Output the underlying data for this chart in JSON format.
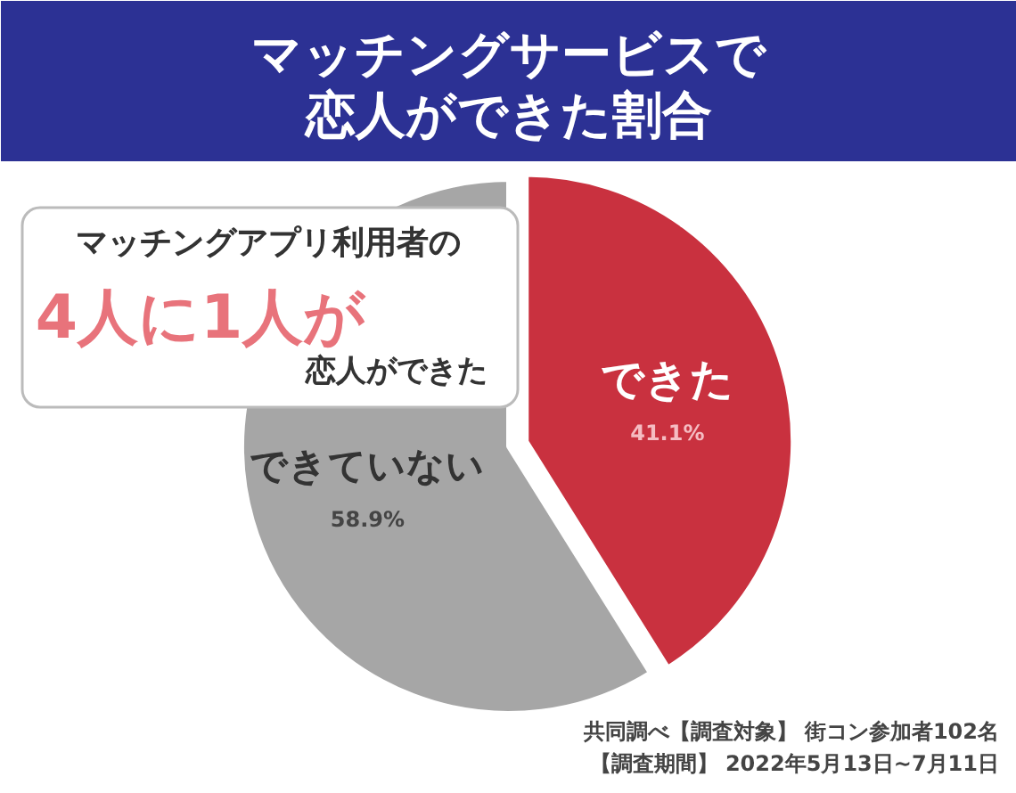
{
  "chart_data": {
    "type": "pie",
    "title": "マッチングサービスで恋人ができた割合",
    "categories": [
      "できた",
      "できていない"
    ],
    "values": [
      41.1,
      58.9
    ],
    "colors": [
      "#c9313f",
      "#a6a6a6"
    ],
    "value_labels": [
      "41.1%",
      "58.9%"
    ],
    "annotations": [
      "マッチングアプリ利用者の",
      "4人に1人が",
      "恋人ができた",
      "共同調べ【調査対象】 街コン参加者102名",
      "【調査期間】 2022年5月13日~7月11日"
    ]
  }
}
